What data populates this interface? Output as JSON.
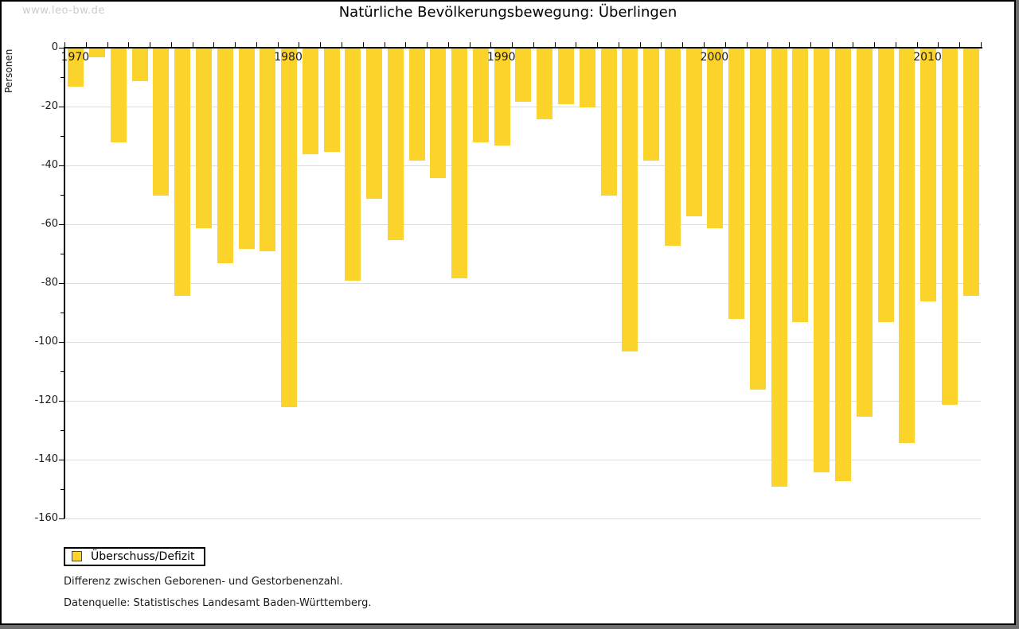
{
  "watermark": "www.leo-bw.de",
  "title": "Natürliche Bevölkerungsbewegung: Überlingen",
  "y_axis_label": "Personen",
  "legend_label": "Überschuss/Defizit",
  "note1": "Differenz zwischen Geborenen- und Gestorbenenzahl.",
  "note2": "Datenquelle: Statistisches Landesamt Baden-Württemberg.",
  "colors": {
    "bar": "#fcd32b",
    "grid": "#dcdcdc",
    "axis": "#000000",
    "watermark": "#cccccc"
  },
  "chart_data": {
    "type": "bar",
    "title": "Natürliche Bevölkerungsbewegung: Überlingen",
    "xlabel": "",
    "ylabel": "Personen",
    "ylim": [
      -160,
      0
    ],
    "y_tick_step": 20,
    "y_minor_tick_step": 10,
    "grid": "horizontal",
    "legend_position": "bottom-left",
    "legend": [
      "Überschuss/Defizit"
    ],
    "x_decade_labels": [
      1970,
      1980,
      1990,
      2000,
      2010
    ],
    "categories": [
      1970,
      1971,
      1972,
      1973,
      1974,
      1975,
      1976,
      1977,
      1978,
      1979,
      1980,
      1981,
      1982,
      1983,
      1984,
      1985,
      1986,
      1987,
      1988,
      1989,
      1990,
      1991,
      1992,
      1993,
      1994,
      1995,
      1996,
      1997,
      1998,
      1999,
      2000,
      2001,
      2002,
      2003,
      2004,
      2005,
      2006,
      2007,
      2008,
      2009,
      2010,
      2011,
      2012
    ],
    "values": [
      -13,
      -3,
      -32,
      -11,
      -50,
      -84,
      -61,
      -73,
      -68,
      -69,
      -122,
      -36,
      -35,
      -79,
      -51,
      -65,
      -38,
      -44,
      -78,
      -32,
      -33,
      -18,
      -24,
      -19,
      -20,
      -50,
      -103,
      -38,
      -67,
      -57,
      -61,
      -92,
      -116,
      -149,
      -93,
      -144,
      -147,
      -125,
      -93,
      -134,
      -86,
      -121,
      -84
    ]
  }
}
